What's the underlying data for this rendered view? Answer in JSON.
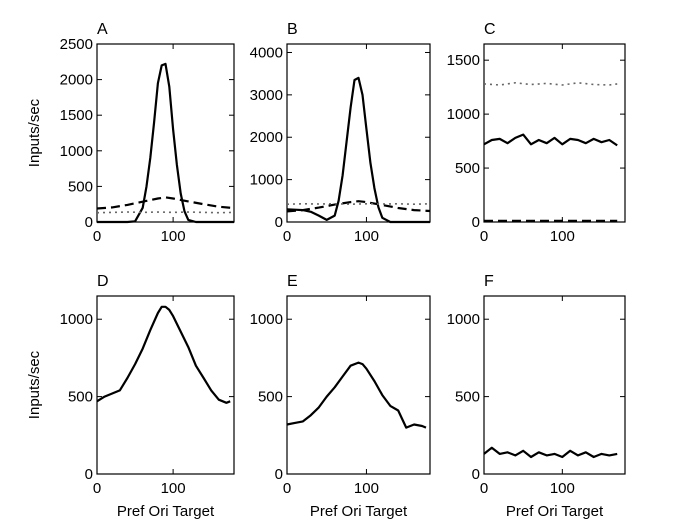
{
  "chart_data": [
    {
      "panel": "A",
      "type": "line",
      "xlim": [
        0,
        180
      ],
      "ylim": [
        0,
        2500
      ],
      "xticks": [
        "0",
        "100"
      ],
      "yticks": [
        "0",
        "500",
        "1000",
        "1500",
        "2000",
        "2500"
      ],
      "ylabel": "Inputs/sec",
      "xlabel": "",
      "series": [
        {
          "name": "solid",
          "style": "solid",
          "x": [
            0,
            10,
            20,
            30,
            40,
            50,
            60,
            65,
            70,
            75,
            80,
            85,
            90,
            95,
            100,
            105,
            110,
            115,
            120,
            130,
            140,
            150,
            160,
            170,
            180
          ],
          "y": [
            0,
            0,
            0,
            0,
            0,
            10,
            200,
            500,
            900,
            1400,
            1950,
            2200,
            2220,
            1900,
            1300,
            800,
            400,
            150,
            30,
            0,
            0,
            0,
            0,
            0,
            0
          ]
        },
        {
          "name": "dashed",
          "style": "dashed",
          "x": [
            0,
            20,
            40,
            60,
            80,
            90,
            100,
            120,
            140,
            160,
            180
          ],
          "y": [
            190,
            205,
            240,
            285,
            330,
            345,
            330,
            290,
            250,
            215,
            195
          ]
        },
        {
          "name": "dotted",
          "style": "dotted",
          "x": [
            0,
            20,
            40,
            60,
            80,
            100,
            120,
            140,
            160,
            180
          ],
          "y": [
            130,
            135,
            140,
            135,
            140,
            135,
            140,
            135,
            130,
            135
          ]
        }
      ]
    },
    {
      "panel": "B",
      "type": "line",
      "xlim": [
        0,
        180
      ],
      "ylim": [
        0,
        4200
      ],
      "xticks": [
        "0",
        "100"
      ],
      "yticks": [
        "0",
        "1000",
        "2000",
        "3000",
        "4000"
      ],
      "ylabel": "",
      "xlabel": "",
      "series": [
        {
          "name": "solid",
          "style": "solid",
          "x": [
            0,
            10,
            20,
            30,
            40,
            50,
            60,
            65,
            70,
            75,
            80,
            85,
            90,
            95,
            100,
            105,
            110,
            115,
            120,
            130,
            140,
            150,
            160,
            170,
            180
          ],
          "y": [
            300,
            290,
            280,
            240,
            150,
            50,
            150,
            500,
            1100,
            1900,
            2700,
            3350,
            3400,
            3000,
            2200,
            1400,
            800,
            350,
            100,
            0,
            0,
            0,
            0,
            0,
            0
          ]
        },
        {
          "name": "dashed",
          "style": "dashed",
          "x": [
            0,
            20,
            40,
            60,
            80,
            90,
            100,
            120,
            140,
            160,
            180
          ],
          "y": [
            250,
            280,
            340,
            410,
            470,
            490,
            470,
            400,
            330,
            280,
            260
          ]
        },
        {
          "name": "dotted",
          "style": "dotted",
          "x": [
            0,
            20,
            40,
            60,
            80,
            100,
            120,
            140,
            160,
            180
          ],
          "y": [
            420,
            430,
            425,
            430,
            420,
            430,
            425,
            430,
            420,
            430
          ]
        }
      ]
    },
    {
      "panel": "C",
      "type": "line",
      "xlim": [
        0,
        180
      ],
      "ylim": [
        0,
        1650
      ],
      "xticks": [
        "0",
        "100"
      ],
      "yticks": [
        "0",
        "500",
        "1000",
        "1500"
      ],
      "ylabel": "",
      "xlabel": "",
      "series": [
        {
          "name": "solid",
          "style": "solid",
          "x": [
            0,
            10,
            20,
            30,
            40,
            50,
            60,
            70,
            80,
            90,
            100,
            110,
            120,
            130,
            140,
            150,
            160,
            170
          ],
          "y": [
            720,
            760,
            770,
            730,
            780,
            810,
            720,
            760,
            730,
            780,
            720,
            770,
            760,
            730,
            770,
            740,
            760,
            710
          ]
        },
        {
          "name": "dashed",
          "style": "dashed",
          "x": [
            0,
            20,
            40,
            60,
            80,
            100,
            120,
            140,
            160,
            170
          ],
          "y": [
            10,
            10,
            10,
            10,
            10,
            10,
            10,
            10,
            10,
            10
          ]
        },
        {
          "name": "dotted",
          "style": "dotted",
          "x": [
            0,
            20,
            40,
            60,
            80,
            100,
            120,
            140,
            160,
            170
          ],
          "y": [
            1280,
            1270,
            1290,
            1275,
            1285,
            1270,
            1290,
            1275,
            1270,
            1280
          ]
        }
      ]
    },
    {
      "panel": "D",
      "type": "line",
      "xlim": [
        0,
        180
      ],
      "ylim": [
        0,
        1150
      ],
      "xticks": [
        "0",
        "100"
      ],
      "yticks": [
        "0",
        "500",
        "1000"
      ],
      "ylabel": "Inputs/sec",
      "xlabel": "Pref Ori Target",
      "series": [
        {
          "name": "solid",
          "style": "solid",
          "x": [
            0,
            10,
            20,
            30,
            40,
            50,
            60,
            70,
            80,
            85,
            90,
            95,
            100,
            110,
            120,
            130,
            140,
            150,
            160,
            170,
            175
          ],
          "y": [
            470,
            500,
            520,
            540,
            620,
            710,
            810,
            930,
            1040,
            1080,
            1080,
            1060,
            1020,
            920,
            820,
            700,
            620,
            540,
            480,
            460,
            470
          ]
        }
      ]
    },
    {
      "panel": "E",
      "type": "line",
      "xlim": [
        0,
        180
      ],
      "ylim": [
        0,
        1150
      ],
      "xticks": [
        "0",
        "100"
      ],
      "yticks": [
        "0",
        "500",
        "1000"
      ],
      "ylabel": "",
      "xlabel": "Pref Ori Target",
      "series": [
        {
          "name": "solid",
          "style": "solid",
          "x": [
            0,
            10,
            20,
            30,
            40,
            50,
            60,
            70,
            80,
            90,
            95,
            100,
            110,
            120,
            130,
            140,
            150,
            160,
            170,
            175
          ],
          "y": [
            320,
            330,
            340,
            380,
            430,
            500,
            560,
            630,
            700,
            720,
            710,
            680,
            600,
            510,
            440,
            410,
            300,
            320,
            310,
            300
          ]
        }
      ]
    },
    {
      "panel": "F",
      "type": "line",
      "xlim": [
        0,
        180
      ],
      "ylim": [
        0,
        1150
      ],
      "xticks": [
        "0",
        "100"
      ],
      "yticks": [
        "0",
        "500",
        "1000"
      ],
      "ylabel": "",
      "xlabel": "Pref Ori Target",
      "series": [
        {
          "name": "solid",
          "style": "solid",
          "x": [
            0,
            10,
            20,
            30,
            40,
            50,
            60,
            70,
            80,
            90,
            100,
            110,
            120,
            130,
            140,
            150,
            160,
            170
          ],
          "y": [
            130,
            170,
            130,
            140,
            120,
            150,
            110,
            140,
            120,
            130,
            110,
            150,
            120,
            140,
            110,
            130,
            120,
            130
          ]
        }
      ]
    }
  ]
}
